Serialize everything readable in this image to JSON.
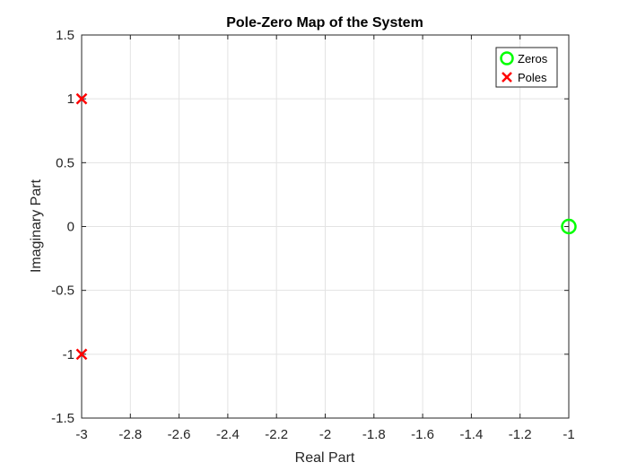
{
  "chart_data": {
    "type": "scatter",
    "title": "Pole-Zero Map of the System",
    "xlabel": "Real Part",
    "ylabel": "Imaginary Part",
    "xlim": [
      -3,
      -1
    ],
    "ylim": [
      -1.5,
      1.5
    ],
    "x_ticks": [
      -3,
      -2.8,
      -2.6,
      -2.4,
      -2.2,
      -2,
      -1.8,
      -1.6,
      -1.4,
      -1.2,
      -1
    ],
    "x_tick_labels": [
      "-3",
      "-2.8",
      "-2.6",
      "-2.4",
      "-2.2",
      "-2",
      "-1.8",
      "-1.6",
      "-1.4",
      "-1.2",
      "-1"
    ],
    "y_ticks": [
      1.5,
      1,
      0.5,
      0,
      -0.5,
      -1,
      -1.5
    ],
    "y_tick_labels": [
      "1.5",
      "1",
      "0.5",
      "0",
      "-0.5",
      "-1",
      "-1.5"
    ],
    "grid": true,
    "legend_position": "top-right",
    "series": [
      {
        "name": "Zeros",
        "marker": "circle",
        "color": "#00ff00",
        "points": [
          {
            "x": -1,
            "y": 0
          }
        ]
      },
      {
        "name": "Poles",
        "marker": "x",
        "color": "#ff0000",
        "points": [
          {
            "x": -3,
            "y": 1
          },
          {
            "x": -3,
            "y": -1
          }
        ]
      }
    ]
  }
}
